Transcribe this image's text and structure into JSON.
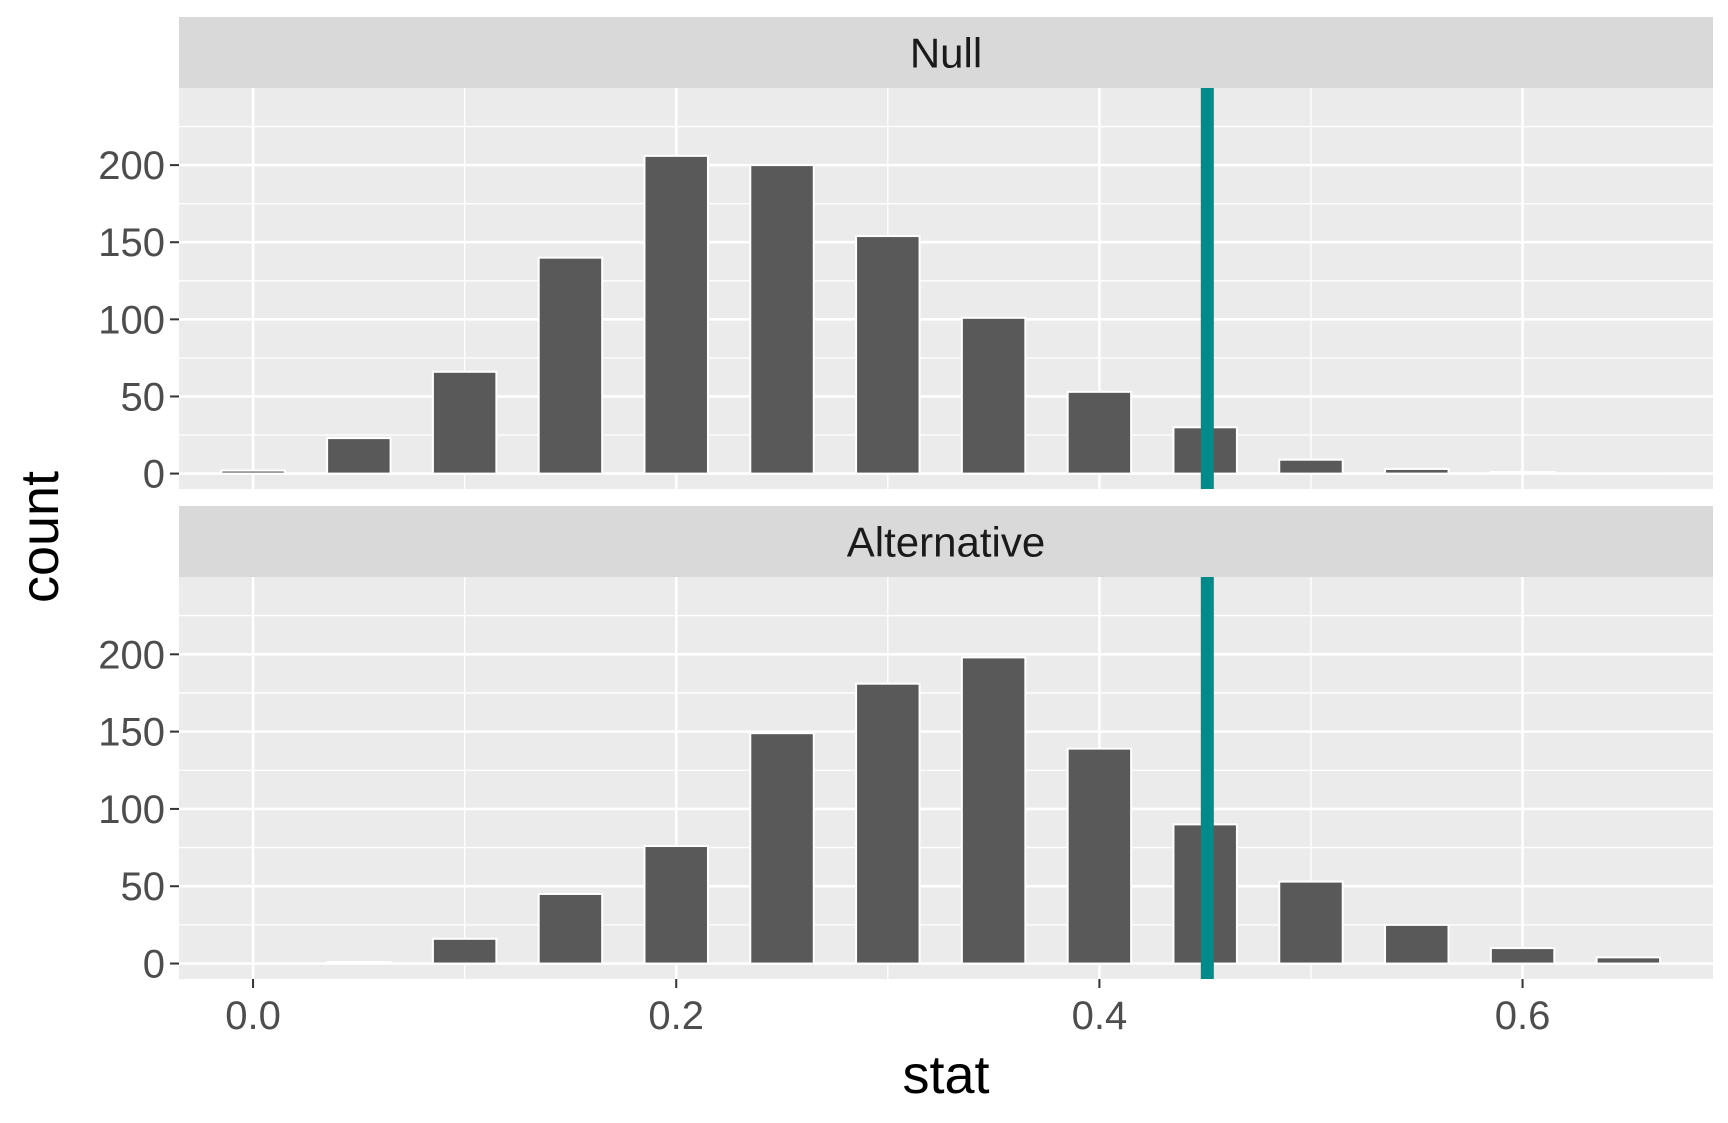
{
  "chart_data": {
    "type": "bar",
    "xlabel": "stat",
    "ylabel": "count",
    "xlim": [
      -0.035,
      0.69
    ],
    "ylim": [
      -10,
      250
    ],
    "x_ticks": [
      0.0,
      0.2,
      0.4,
      0.6
    ],
    "x_tick_labels": [
      "0.0",
      "0.2",
      "0.4",
      "0.6"
    ],
    "y_ticks": [
      0,
      50,
      100,
      150,
      200
    ],
    "y_tick_labels": [
      "0",
      "50",
      "100",
      "150",
      "200"
    ],
    "bar_width": 0.015,
    "x": [
      0.0,
      0.05,
      0.1,
      0.15,
      0.2,
      0.25,
      0.3,
      0.35,
      0.4,
      0.45,
      0.5,
      0.55,
      0.6,
      0.65
    ],
    "grid": true,
    "reference_line": {
      "x": 0.451,
      "color": "#008b8b"
    },
    "colors": {
      "panel_bg": "#ebebeb",
      "strip_bg": "#d9d9d9",
      "grid": "#ffffff",
      "bar_fill": "#595959",
      "bar_outline": "#ffffff"
    },
    "facets": [
      {
        "name": "Null",
        "values": [
          2,
          23,
          66,
          140,
          206,
          200,
          154,
          101,
          53,
          30,
          9,
          3,
          1,
          0
        ]
      },
      {
        "name": "Alternative",
        "values": [
          0,
          1,
          16,
          45,
          76,
          149,
          181,
          198,
          139,
          90,
          53,
          25,
          10,
          4
        ]
      }
    ]
  }
}
